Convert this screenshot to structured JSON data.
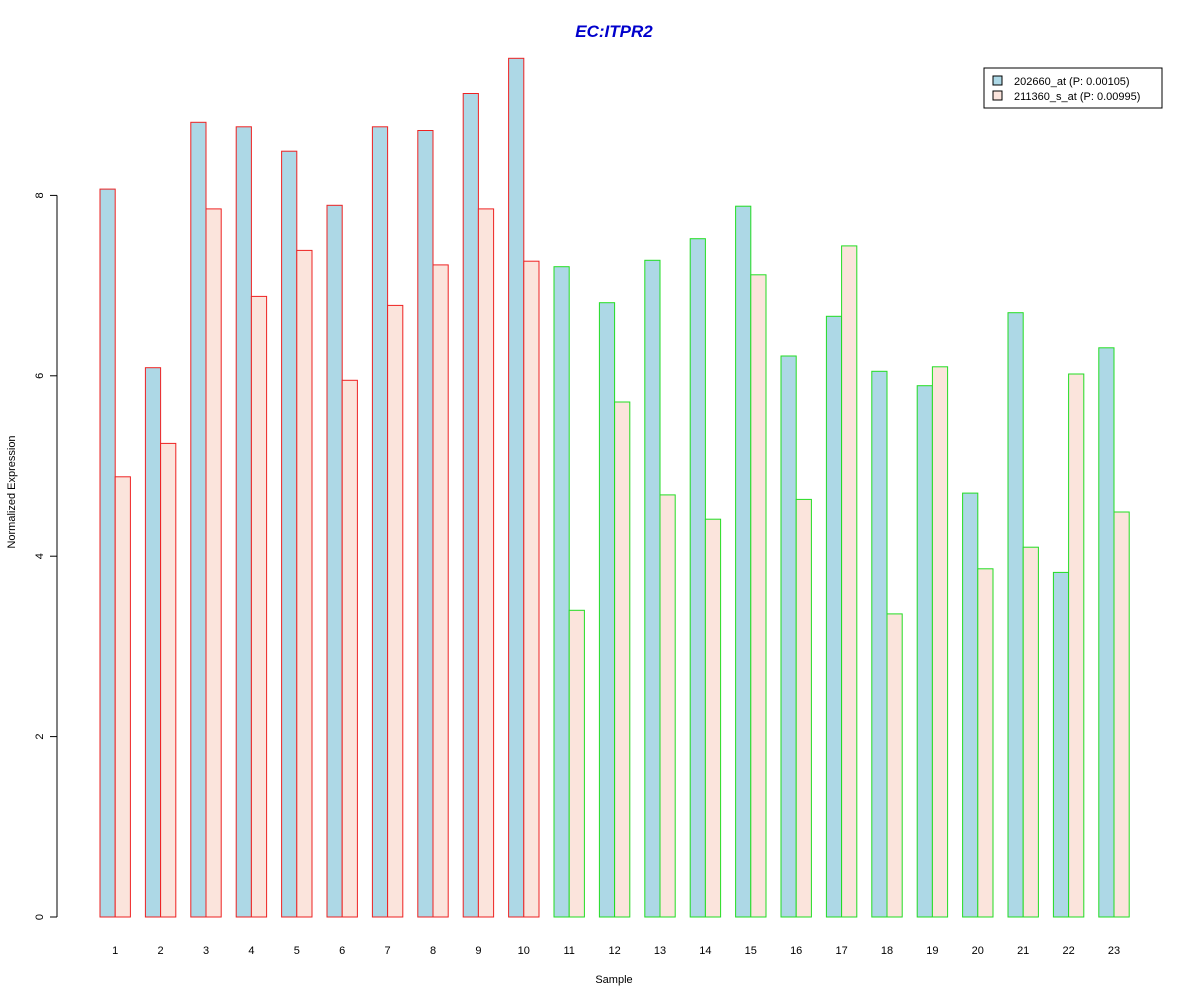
{
  "chart_data": {
    "type": "bar",
    "title": "EC:ITPR2",
    "xlabel": "Sample",
    "ylabel": "Normalized Expression",
    "ylim": [
      0,
      9.5
    ],
    "yticks": [
      0,
      2,
      4,
      6,
      8
    ],
    "categories": [
      "1",
      "2",
      "3",
      "4",
      "5",
      "6",
      "7",
      "8",
      "9",
      "10",
      "11",
      "12",
      "13",
      "14",
      "15",
      "16",
      "17",
      "18",
      "19",
      "20",
      "21",
      "22",
      "23"
    ],
    "group_border_colors": [
      "#ee2222",
      "#ee2222",
      "#ee2222",
      "#ee2222",
      "#ee2222",
      "#ee2222",
      "#ee2222",
      "#ee2222",
      "#ee2222",
      "#ee2222",
      "#22dd22",
      "#22dd22",
      "#22dd22",
      "#22dd22",
      "#22dd22",
      "#22dd22",
      "#22dd22",
      "#22dd22",
      "#22dd22",
      "#22dd22",
      "#22dd22",
      "#22dd22",
      "#22dd22"
    ],
    "series": [
      {
        "name": "202660_at (P: 0.00105)",
        "color": "#add8e6",
        "values": [
          8.07,
          6.09,
          8.81,
          8.76,
          8.49,
          7.89,
          8.76,
          8.72,
          9.13,
          9.52,
          7.21,
          6.81,
          7.28,
          7.52,
          7.88,
          6.22,
          6.66,
          6.05,
          5.89,
          4.7,
          6.7,
          3.82,
          6.31
        ]
      },
      {
        "name": "211360_s_at (P: 0.00995)",
        "color": "#fbe4dc",
        "values": [
          4.88,
          5.25,
          7.85,
          6.88,
          7.39,
          5.95,
          6.78,
          7.23,
          7.85,
          7.27,
          3.4,
          5.71,
          4.68,
          4.41,
          7.12,
          4.63,
          7.44,
          3.36,
          6.1,
          3.86,
          4.1,
          6.02,
          4.49
        ]
      }
    ],
    "legend_position": "top-right",
    "grid": false,
    "title_color": "#0000cc"
  }
}
